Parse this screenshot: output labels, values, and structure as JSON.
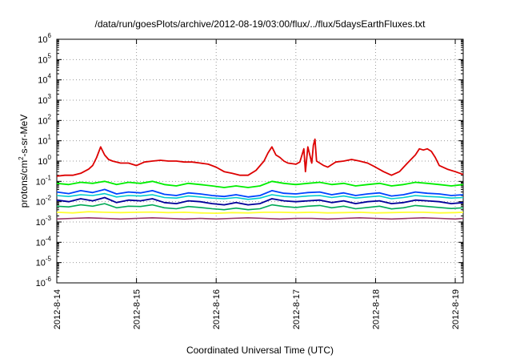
{
  "chart_data": {
    "type": "line",
    "title": "/data/run/goesPlots/archive/2012-08-19/03:00/flux/../flux/5daysEarthFluxes.txt",
    "xlabel": "Coordinated Universal Time (UTC)",
    "ylabel": "protons/cm²-s-sr-MeV",
    "ylabel_parts": {
      "pre": "protons/cm",
      "sup": "2",
      "post": "-s-sr-MeV"
    },
    "yscale": "log",
    "ylim_exp": [
      -6,
      6
    ],
    "y_ticks": [
      {
        "base": "10",
        "exp": "6"
      },
      {
        "base": "10",
        "exp": "5"
      },
      {
        "base": "10",
        "exp": "4"
      },
      {
        "base": "10",
        "exp": "3"
      },
      {
        "base": "10",
        "exp": "2"
      },
      {
        "base": "10",
        "exp": "1"
      },
      {
        "base": "10",
        "exp": "0"
      },
      {
        "base": "10",
        "exp": "-1"
      },
      {
        "base": "10",
        "exp": "-2"
      },
      {
        "base": "10",
        "exp": "-3"
      },
      {
        "base": "10",
        "exp": "-4"
      },
      {
        "base": "10",
        "exp": "-5"
      },
      {
        "base": "10",
        "exp": "-6"
      }
    ],
    "x_ticks": [
      "2012-8-14",
      "2012-8-15",
      "2012-8-16",
      "2012-8-17",
      "2012-8-18",
      "2012-8-19"
    ],
    "x_tick_days": [
      0,
      1,
      2,
      3,
      4,
      5
    ],
    "xlim_days": [
      0,
      5.1
    ],
    "grid": true,
    "series": [
      {
        "color": "#dd0000",
        "width": 1.8,
        "x": [
          0,
          0.1,
          0.2,
          0.3,
          0.4,
          0.45,
          0.5,
          0.55,
          0.6,
          0.65,
          0.7,
          0.75,
          0.8,
          0.9,
          1.0,
          1.1,
          1.2,
          1.3,
          1.4,
          1.5,
          1.6,
          1.7,
          1.8,
          1.9,
          2.0,
          2.1,
          2.2,
          2.3,
          2.4,
          2.5,
          2.6,
          2.65,
          2.7,
          2.75,
          2.8,
          2.85,
          2.9,
          3.0,
          3.05,
          3.1,
          3.12,
          3.15,
          3.2,
          3.22,
          3.24,
          3.26,
          3.3,
          3.35,
          3.4,
          3.5,
          3.6,
          3.7,
          3.8,
          3.9,
          4.0,
          4.1,
          4.2,
          4.3,
          4.4,
          4.5,
          4.55,
          4.6,
          4.65,
          4.7,
          4.75,
          4.8,
          4.9,
          5.0,
          5.1
        ],
        "values": [
          0.18,
          0.2,
          0.2,
          0.25,
          0.4,
          0.6,
          1.5,
          5.0,
          2.0,
          1.2,
          1.0,
          0.9,
          0.8,
          0.8,
          0.6,
          0.9,
          1.0,
          1.1,
          1.0,
          1.0,
          0.9,
          0.9,
          0.8,
          0.7,
          0.5,
          0.3,
          0.25,
          0.2,
          0.2,
          0.35,
          1.0,
          2.5,
          5.0,
          2.0,
          1.5,
          1.0,
          0.8,
          0.7,
          0.9,
          4.0,
          0.3,
          5.0,
          0.8,
          6.0,
          12.0,
          1.0,
          0.8,
          0.6,
          0.5,
          0.9,
          1.0,
          1.2,
          1.0,
          0.8,
          0.5,
          0.3,
          0.2,
          0.3,
          0.8,
          2.0,
          4.0,
          3.5,
          4.0,
          3.0,
          1.5,
          0.6,
          0.4,
          0.3,
          0.22
        ]
      },
      {
        "color": "#00ee00",
        "width": 1.8,
        "x": [
          0,
          0.15,
          0.3,
          0.45,
          0.6,
          0.75,
          0.9,
          1.05,
          1.2,
          1.35,
          1.5,
          1.65,
          1.8,
          1.95,
          2.1,
          2.25,
          2.4,
          2.55,
          2.7,
          2.85,
          3.0,
          3.15,
          3.3,
          3.45,
          3.6,
          3.75,
          3.9,
          4.05,
          4.2,
          4.35,
          4.5,
          4.65,
          4.8,
          4.95,
          5.1
        ],
        "values": [
          0.08,
          0.07,
          0.09,
          0.08,
          0.1,
          0.07,
          0.09,
          0.08,
          0.1,
          0.07,
          0.06,
          0.08,
          0.07,
          0.06,
          0.05,
          0.06,
          0.05,
          0.06,
          0.1,
          0.08,
          0.07,
          0.08,
          0.09,
          0.07,
          0.08,
          0.06,
          0.07,
          0.08,
          0.06,
          0.07,
          0.09,
          0.08,
          0.07,
          0.06,
          0.07
        ]
      },
      {
        "color": "#00cccc",
        "width": 1.6,
        "x": [
          0,
          0.15,
          0.3,
          0.45,
          0.6,
          0.75,
          0.9,
          1.05,
          1.2,
          1.35,
          1.5,
          1.65,
          1.8,
          1.95,
          2.1,
          2.25,
          2.4,
          2.55,
          2.7,
          2.85,
          3.0,
          3.15,
          3.3,
          3.45,
          3.6,
          3.75,
          3.9,
          4.05,
          4.2,
          4.35,
          4.5,
          4.65,
          4.8,
          4.95,
          5.1
        ],
        "values": [
          0.02,
          0.018,
          0.022,
          0.02,
          0.025,
          0.017,
          0.02,
          0.019,
          0.022,
          0.016,
          0.015,
          0.019,
          0.017,
          0.015,
          0.014,
          0.016,
          0.013,
          0.015,
          0.022,
          0.018,
          0.017,
          0.019,
          0.02,
          0.016,
          0.019,
          0.015,
          0.017,
          0.019,
          0.014,
          0.016,
          0.02,
          0.018,
          0.017,
          0.015,
          0.016
        ]
      },
      {
        "color": "#0044ff",
        "width": 1.8,
        "x": [
          0,
          0.15,
          0.3,
          0.45,
          0.6,
          0.75,
          0.9,
          1.05,
          1.2,
          1.35,
          1.5,
          1.65,
          1.8,
          1.95,
          2.1,
          2.25,
          2.4,
          2.55,
          2.7,
          2.85,
          3.0,
          3.15,
          3.3,
          3.45,
          3.6,
          3.75,
          3.9,
          4.05,
          4.2,
          4.35,
          4.5,
          4.65,
          4.8,
          4.95,
          5.1
        ],
        "values": [
          0.03,
          0.025,
          0.035,
          0.028,
          0.04,
          0.024,
          0.03,
          0.027,
          0.035,
          0.023,
          0.02,
          0.027,
          0.024,
          0.02,
          0.018,
          0.022,
          0.017,
          0.02,
          0.035,
          0.026,
          0.024,
          0.028,
          0.03,
          0.022,
          0.027,
          0.02,
          0.024,
          0.027,
          0.019,
          0.022,
          0.03,
          0.026,
          0.024,
          0.02,
          0.022
        ]
      },
      {
        "color": "#000099",
        "width": 1.8,
        "x": [
          0,
          0.15,
          0.3,
          0.45,
          0.6,
          0.75,
          0.9,
          1.05,
          1.2,
          1.35,
          1.5,
          1.65,
          1.8,
          1.95,
          2.1,
          2.25,
          2.4,
          2.55,
          2.7,
          2.85,
          3.0,
          3.15,
          3.3,
          3.45,
          3.6,
          3.75,
          3.9,
          4.05,
          4.2,
          4.35,
          4.5,
          4.65,
          4.8,
          4.95,
          5.1
        ],
        "values": [
          0.012,
          0.01,
          0.014,
          0.011,
          0.016,
          0.009,
          0.012,
          0.011,
          0.014,
          0.009,
          0.008,
          0.011,
          0.01,
          0.008,
          0.007,
          0.009,
          0.007,
          0.008,
          0.014,
          0.011,
          0.01,
          0.011,
          0.012,
          0.009,
          0.011,
          0.008,
          0.01,
          0.011,
          0.008,
          0.009,
          0.012,
          0.011,
          0.01,
          0.008,
          0.009
        ]
      },
      {
        "color": "#00aa55",
        "width": 1.6,
        "x": [
          0,
          0.15,
          0.3,
          0.45,
          0.6,
          0.75,
          0.9,
          1.05,
          1.2,
          1.35,
          1.5,
          1.65,
          1.8,
          1.95,
          2.1,
          2.25,
          2.4,
          2.55,
          2.7,
          2.85,
          3.0,
          3.15,
          3.3,
          3.45,
          3.6,
          3.75,
          3.9,
          4.05,
          4.2,
          4.35,
          4.5,
          4.65,
          4.8,
          4.95,
          5.1
        ],
        "values": [
          0.006,
          0.0055,
          0.007,
          0.006,
          0.008,
          0.005,
          0.006,
          0.0058,
          0.007,
          0.005,
          0.0045,
          0.0058,
          0.0052,
          0.0045,
          0.004,
          0.0048,
          0.004,
          0.0045,
          0.007,
          0.0058,
          0.0052,
          0.006,
          0.0065,
          0.005,
          0.006,
          0.0045,
          0.0052,
          0.006,
          0.0044,
          0.005,
          0.0065,
          0.0058,
          0.0052,
          0.0046,
          0.005
        ]
      },
      {
        "color": "#ffff33",
        "width": 1.8,
        "x": [
          0,
          0.2,
          0.4,
          0.6,
          0.8,
          1.0,
          1.2,
          1.4,
          1.6,
          1.8,
          2.0,
          2.2,
          2.4,
          2.6,
          2.8,
          3.0,
          3.2,
          3.4,
          3.6,
          3.8,
          4.0,
          4.2,
          4.4,
          4.6,
          4.8,
          5.0,
          5.1
        ],
        "values": [
          0.003,
          0.0028,
          0.0032,
          0.003,
          0.0029,
          0.003,
          0.0031,
          0.0029,
          0.003,
          0.0028,
          0.0027,
          0.0029,
          0.0028,
          0.003,
          0.003,
          0.0029,
          0.003,
          0.0028,
          0.0029,
          0.003,
          0.0028,
          0.0029,
          0.003,
          0.003,
          0.0028,
          0.0029,
          0.003
        ]
      },
      {
        "color": "#993366",
        "width": 1.6,
        "x": [
          0,
          0.2,
          0.4,
          0.6,
          0.8,
          1.0,
          1.2,
          1.4,
          1.6,
          1.8,
          2.0,
          2.2,
          2.4,
          2.6,
          2.8,
          3.0,
          3.2,
          3.4,
          3.6,
          3.8,
          4.0,
          4.2,
          4.4,
          4.6,
          4.8,
          5.0,
          5.1
        ],
        "values": [
          0.0014,
          0.0015,
          0.0016,
          0.0015,
          0.0014,
          0.0015,
          0.0016,
          0.0015,
          0.0014,
          0.0015,
          0.0014,
          0.0015,
          0.0016,
          0.0015,
          0.0014,
          0.0015,
          0.0015,
          0.0014,
          0.0015,
          0.0016,
          0.0015,
          0.0014,
          0.0015,
          0.0016,
          0.0015,
          0.0014,
          0.0015
        ]
      }
    ]
  }
}
